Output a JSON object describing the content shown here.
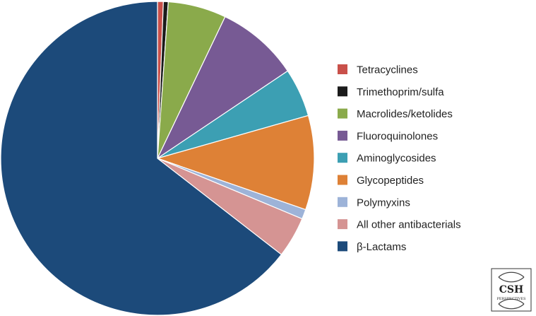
{
  "chart_data": {
    "type": "pie",
    "title": "",
    "start_angle_deg": 0,
    "direction": "clockwise",
    "slices": [
      {
        "label": "Tetracyclines",
        "value": 0.6,
        "color": "#c9504a"
      },
      {
        "label": "Trimethoprim/sulfa",
        "value": 0.5,
        "color": "#1b1b1b"
      },
      {
        "label": "Macrolides/ketolides",
        "value": 6.0,
        "color": "#8aaa4b"
      },
      {
        "label": "Fluoroquinolones",
        "value": 8.5,
        "color": "#775a94"
      },
      {
        "label": "Aminoglycosides",
        "value": 5.0,
        "color": "#3c9fb3"
      },
      {
        "label": "Glycopeptides",
        "value": 9.7,
        "color": "#de8136"
      },
      {
        "label": "Polymyxins",
        "value": 1.0,
        "color": "#9db3d8"
      },
      {
        "label": "All other antibacterials",
        "value": 4.2,
        "color": "#d59493"
      },
      {
        "label": "β-Lactams",
        "value": 64.5,
        "color": "#1c4a7a"
      }
    ],
    "legend_position": "right"
  },
  "logo": {
    "name": "CSH Perspectives",
    "text_main": "CSH",
    "text_sub": "PERSPECTIVES",
    "icon": "dna-helix-icon"
  }
}
